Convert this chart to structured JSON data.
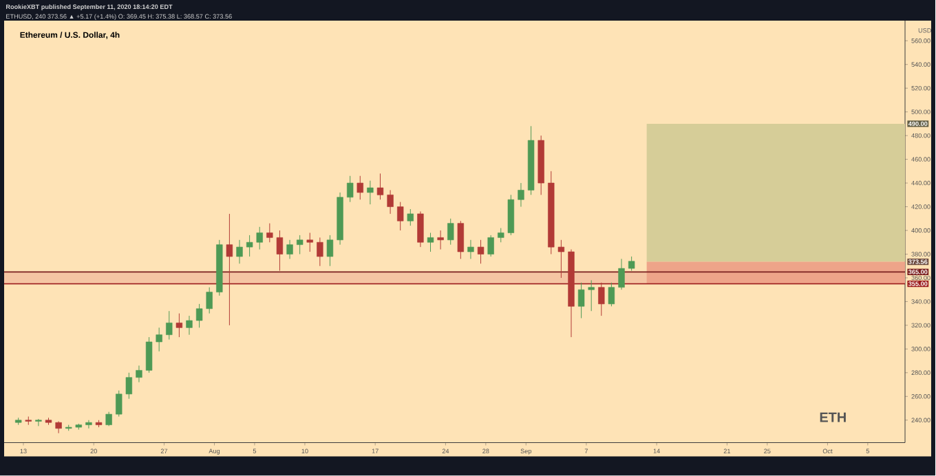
{
  "chart_data": {
    "type": "candlestick",
    "title": "Ethereum / U.S. Dollar, 4h",
    "ylabel": "USD",
    "annotations": [
      "RookieXBT published September 11, 2020 18:14:20 EDT",
      "ETHUSD, 240 373.56 ▲ +5.17 (+1.4%) O: 369.45 H: 375.38 L: 368.57 C: 373.56",
      "ETH"
    ],
    "x": [
      "2020-07-12T12:00",
      "2020-07-13T12:00",
      "2020-07-14T12:00",
      "2020-07-15T12:00",
      "2020-07-16T12:00",
      "2020-07-17T12:00",
      "2020-07-18T12:00",
      "2020-07-19T12:00",
      "2020-07-20T12:00",
      "2020-07-21T12:00",
      "2020-07-22T12:00",
      "2020-07-23T12:00",
      "2020-07-24T12:00",
      "2020-07-25T12:00",
      "2020-07-26T12:00",
      "2020-07-27T12:00",
      "2020-07-28T12:00",
      "2020-07-29T12:00",
      "2020-07-30T12:00",
      "2020-07-31T12:00",
      "2020-08-01T12:00",
      "2020-08-02T12:00",
      "2020-08-03T12:00",
      "2020-08-04T12:00",
      "2020-08-05T12:00",
      "2020-08-06T12:00",
      "2020-08-07T12:00",
      "2020-08-08T12:00",
      "2020-08-09T12:00",
      "2020-08-10T12:00",
      "2020-08-11T12:00",
      "2020-08-12T12:00",
      "2020-08-13T12:00",
      "2020-08-14T12:00",
      "2020-08-15T12:00",
      "2020-08-16T12:00",
      "2020-08-17T12:00",
      "2020-08-18T12:00",
      "2020-08-19T12:00",
      "2020-08-20T12:00",
      "2020-08-21T12:00",
      "2020-08-22T12:00",
      "2020-08-23T12:00",
      "2020-08-24T12:00",
      "2020-08-25T12:00",
      "2020-08-26T12:00",
      "2020-08-27T12:00",
      "2020-08-28T12:00",
      "2020-08-29T12:00",
      "2020-08-30T12:00",
      "2020-08-31T12:00",
      "2020-09-01T12:00",
      "2020-09-02T12:00",
      "2020-09-03T12:00",
      "2020-09-04T12:00",
      "2020-09-05T12:00",
      "2020-09-06T12:00",
      "2020-09-07T12:00",
      "2020-09-08T12:00",
      "2020-09-09T12:00",
      "2020-09-10T12:00",
      "2020-09-11T12:00"
    ],
    "ohlc": [
      [
        238,
        242,
        236,
        240
      ],
      [
        240,
        243,
        236,
        239
      ],
      [
        239,
        241,
        235,
        240
      ],
      [
        240,
        242,
        236,
        238
      ],
      [
        238,
        239,
        229,
        233
      ],
      [
        233,
        236,
        231,
        234
      ],
      [
        234,
        237,
        232,
        236
      ],
      [
        236,
        240,
        233,
        238
      ],
      [
        238,
        240,
        234,
        236
      ],
      [
        236,
        247,
        235,
        245
      ],
      [
        245,
        265,
        243,
        262
      ],
      [
        262,
        280,
        258,
        276
      ],
      [
        276,
        286,
        272,
        282
      ],
      [
        282,
        310,
        280,
        306
      ],
      [
        306,
        318,
        298,
        312
      ],
      [
        312,
        332,
        308,
        322
      ],
      [
        322,
        330,
        310,
        318
      ],
      [
        318,
        328,
        312,
        324
      ],
      [
        324,
        338,
        318,
        334
      ],
      [
        334,
        352,
        330,
        348
      ],
      [
        348,
        392,
        345,
        388
      ],
      [
        388,
        414,
        320,
        378
      ],
      [
        378,
        392,
        372,
        386
      ],
      [
        386,
        396,
        378,
        390
      ],
      [
        390,
        403,
        384,
        398
      ],
      [
        398,
        406,
        390,
        394
      ],
      [
        394,
        400,
        366,
        380
      ],
      [
        380,
        392,
        376,
        388
      ],
      [
        388,
        396,
        380,
        392
      ],
      [
        392,
        398,
        382,
        390
      ],
      [
        390,
        394,
        370,
        378
      ],
      [
        378,
        396,
        370,
        392
      ],
      [
        392,
        432,
        388,
        428
      ],
      [
        428,
        446,
        424,
        440
      ],
      [
        440,
        446,
        426,
        432
      ],
      [
        432,
        442,
        422,
        436
      ],
      [
        436,
        448,
        426,
        430
      ],
      [
        430,
        434,
        414,
        420
      ],
      [
        420,
        424,
        400,
        408
      ],
      [
        408,
        418,
        404,
        414
      ],
      [
        414,
        416,
        386,
        390
      ],
      [
        390,
        398,
        382,
        394
      ],
      [
        394,
        400,
        384,
        392
      ],
      [
        392,
        410,
        388,
        406
      ],
      [
        406,
        408,
        376,
        382
      ],
      [
        382,
        392,
        376,
        386
      ],
      [
        386,
        392,
        372,
        380
      ],
      [
        380,
        396,
        378,
        394
      ],
      [
        394,
        402,
        390,
        398
      ],
      [
        398,
        430,
        396,
        426
      ],
      [
        426,
        440,
        420,
        434
      ],
      [
        434,
        488,
        430,
        476
      ],
      [
        476,
        480,
        430,
        440
      ],
      [
        440,
        450,
        380,
        386
      ],
      [
        386,
        392,
        360,
        382
      ],
      [
        382,
        384,
        310,
        336
      ],
      [
        336,
        356,
        326,
        350
      ],
      [
        350,
        358,
        332,
        352
      ],
      [
        352,
        356,
        328,
        338
      ],
      [
        338,
        356,
        336,
        352
      ],
      [
        352,
        376,
        350,
        368
      ],
      [
        368,
        378,
        366,
        374
      ]
    ],
    "xlim": [
      "2020-07-11T02:00",
      "2020-10-08T17:00"
    ],
    "ylim": [
      221,
      577
    ],
    "xticks": [
      {
        "value": "2020-07-13",
        "label": "13"
      },
      {
        "value": "2020-07-20",
        "label": "20"
      },
      {
        "value": "2020-07-27",
        "label": "27"
      },
      {
        "value": "2020-08-01",
        "label": "Aug"
      },
      {
        "value": "2020-08-05",
        "label": "5"
      },
      {
        "value": "2020-08-10",
        "label": "10"
      },
      {
        "value": "2020-08-17",
        "label": "17"
      },
      {
        "value": "2020-08-24",
        "label": "24"
      },
      {
        "value": "2020-08-28",
        "label": "28"
      },
      {
        "value": "2020-09-01",
        "label": "Sep"
      },
      {
        "value": "2020-09-07",
        "label": "7"
      },
      {
        "value": "2020-09-14",
        "label": "14"
      },
      {
        "value": "2020-09-21",
        "label": "21"
      },
      {
        "value": "2020-09-25",
        "label": "25"
      },
      {
        "value": "2020-10-01",
        "label": "Oct"
      },
      {
        "value": "2020-10-05",
        "label": "5"
      }
    ],
    "yticks": [
      {
        "value": 240,
        "label": "240.00"
      },
      {
        "value": 260,
        "label": "260.00"
      },
      {
        "value": 280,
        "label": "280.00"
      },
      {
        "value": 300,
        "label": "300.00"
      },
      {
        "value": 320,
        "label": "320.00"
      },
      {
        "value": 340,
        "label": "340.00"
      },
      {
        "value": 360,
        "label": "360.00"
      },
      {
        "value": 380,
        "label": "380.00"
      },
      {
        "value": 400,
        "label": "400.00"
      },
      {
        "value": 420,
        "label": "420.00"
      },
      {
        "value": 440,
        "label": "440.00"
      },
      {
        "value": 460,
        "label": "460.00"
      },
      {
        "value": 480,
        "label": "480.00"
      },
      {
        "value": 500,
        "label": "500.00"
      },
      {
        "value": 520,
        "label": "520.00"
      },
      {
        "value": 540,
        "label": "540.00"
      },
      {
        "value": 560,
        "label": "560.00"
      }
    ],
    "bands": [
      {
        "axis": "y",
        "from": 355,
        "to": 365,
        "color": "#f5c5a3"
      },
      {
        "axis": "y",
        "from": 373.56,
        "to": 490,
        "label": "490.00",
        "color": "#d6cd98"
      },
      {
        "axis": "y",
        "from": 355,
        "to": 373.56,
        "label": "373.56",
        "color": "#eea489"
      }
    ],
    "ref_lines": [
      {
        "axis": "y",
        "value": 365,
        "label": "365.00",
        "color": "#7a1f1f",
        "line_style": "solid"
      },
      {
        "axis": "y",
        "value": 355,
        "label": "355.00",
        "color": "#9c1c1c",
        "line_style": "solid"
      }
    ]
  }
}
